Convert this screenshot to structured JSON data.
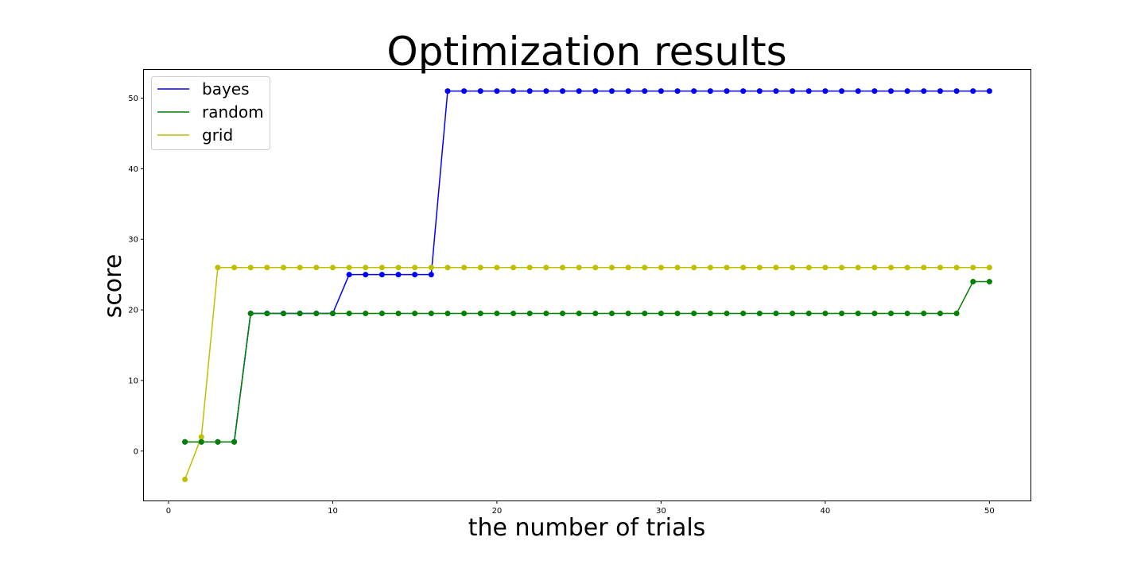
{
  "chart_data": {
    "type": "line",
    "title": "Optimization results",
    "xlabel": "the number of trials",
    "ylabel": "score",
    "xlim": [
      -1.5,
      52.5
    ],
    "ylim": [
      -7,
      54
    ],
    "xticks": [
      0,
      10,
      20,
      30,
      40,
      50
    ],
    "yticks": [
      0,
      10,
      20,
      30,
      40,
      50
    ],
    "grid": false,
    "legend_position": "upper-left",
    "x": [
      1,
      2,
      3,
      4,
      5,
      6,
      7,
      8,
      9,
      10,
      11,
      12,
      13,
      14,
      15,
      16,
      17,
      18,
      19,
      20,
      21,
      22,
      23,
      24,
      25,
      26,
      27,
      28,
      29,
      30,
      31,
      32,
      33,
      34,
      35,
      36,
      37,
      38,
      39,
      40,
      41,
      42,
      43,
      44,
      45,
      46,
      47,
      48,
      49,
      50
    ],
    "series": [
      {
        "name": "bayes",
        "color": "#0000ff",
        "values": [
          1.3,
          1.3,
          1.3,
          1.3,
          19.5,
          19.5,
          19.5,
          19.5,
          19.5,
          19.5,
          25,
          25,
          25,
          25,
          25,
          25,
          51,
          51,
          51,
          51,
          51,
          51,
          51,
          51,
          51,
          51,
          51,
          51,
          51,
          51,
          51,
          51,
          51,
          51,
          51,
          51,
          51,
          51,
          51,
          51,
          51,
          51,
          51,
          51,
          51,
          51,
          51,
          51,
          51,
          51
        ]
      },
      {
        "name": "grid",
        "color": "#bfbf00",
        "values": [
          -4,
          2,
          26,
          26,
          26,
          26,
          26,
          26,
          26,
          26,
          26,
          26,
          26,
          26,
          26,
          26,
          26,
          26,
          26,
          26,
          26,
          26,
          26,
          26,
          26,
          26,
          26,
          26,
          26,
          26,
          26,
          26,
          26,
          26,
          26,
          26,
          26,
          26,
          26,
          26,
          26,
          26,
          26,
          26,
          26,
          26,
          26,
          26,
          26,
          26
        ]
      },
      {
        "name": "random",
        "color": "#008000",
        "values": [
          1.3,
          1.3,
          1.3,
          1.3,
          19.5,
          19.5,
          19.5,
          19.5,
          19.5,
          19.5,
          19.5,
          19.5,
          19.5,
          19.5,
          19.5,
          19.5,
          19.5,
          19.5,
          19.5,
          19.5,
          19.5,
          19.5,
          19.5,
          19.5,
          19.5,
          19.5,
          19.5,
          19.5,
          19.5,
          19.5,
          19.5,
          19.5,
          19.5,
          19.5,
          19.5,
          19.5,
          19.5,
          19.5,
          19.5,
          19.5,
          19.5,
          19.5,
          19.5,
          19.5,
          19.5,
          19.5,
          19.5,
          19.5,
          24,
          24
        ]
      }
    ],
    "legend_order": [
      "bayes",
      "random",
      "grid"
    ]
  }
}
